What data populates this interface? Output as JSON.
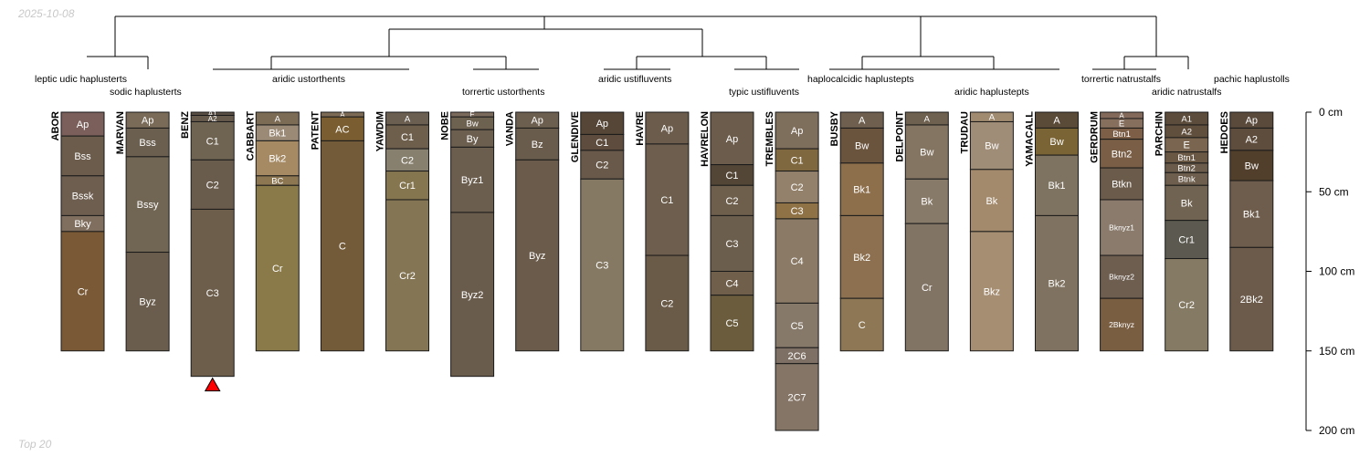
{
  "corner": {
    "date": "2025-10-08",
    "footer": "Top 20"
  },
  "depth_axis": {
    "unit": "cm",
    "ticks": [
      0,
      50,
      100,
      150,
      200
    ]
  },
  "groups": [
    "leptic udic haplusterts",
    "sodic haplusterts",
    "aridic ustorthents",
    "torrertic ustorthents",
    "aridic ustifluvents",
    "typic ustifluvents",
    "haplocalcidic haplustepts",
    "aridic haplustepts",
    "torrertic natrustalfs",
    "aridic natrustalfs",
    "pachic haplustolls"
  ],
  "truncation_marker": {
    "profile": "BENZ"
  },
  "profiles": [
    {
      "name": "ABOR",
      "group": "leptic udic haplusterts",
      "horizons": [
        {
          "name": "Ap",
          "top": 0,
          "bottom": 15,
          "color": "#7a5f5a"
        },
        {
          "name": "Bss",
          "top": 15,
          "bottom": 40,
          "color": "#6b5c4c"
        },
        {
          "name": "Bssk",
          "top": 40,
          "bottom": 65,
          "color": "#6e5e50"
        },
        {
          "name": "Bky",
          "top": 65,
          "bottom": 75,
          "color": "#806e5e"
        },
        {
          "name": "Cr",
          "top": 75,
          "bottom": 150,
          "color": "#7a5a36"
        }
      ]
    },
    {
      "name": "MARVAN",
      "group": "sodic haplusterts",
      "horizons": [
        {
          "name": "Ap",
          "top": 0,
          "bottom": 10,
          "color": "#7a6a58"
        },
        {
          "name": "Bss",
          "top": 10,
          "bottom": 28,
          "color": "#6b5f50"
        },
        {
          "name": "Bssy",
          "top": 28,
          "bottom": 88,
          "color": "#716553"
        },
        {
          "name": "Byz",
          "top": 88,
          "bottom": 150,
          "color": "#6a5d4d"
        }
      ]
    },
    {
      "name": "BENZ",
      "group": "aridic ustorthents",
      "horizons": [
        {
          "name": "A1",
          "top": 0,
          "bottom": 2,
          "color": "#5a4f44"
        },
        {
          "name": "A2",
          "top": 2,
          "bottom": 6,
          "color": "#665a4c"
        },
        {
          "name": "C1",
          "top": 6,
          "bottom": 30,
          "color": "#6f6352"
        },
        {
          "name": "C2",
          "top": 30,
          "bottom": 61,
          "color": "#6a5c4d"
        },
        {
          "name": "C3",
          "top": 61,
          "bottom": 166,
          "color": "#6c5e4a"
        }
      ]
    },
    {
      "name": "CABBART",
      "group": "aridic ustorthents",
      "horizons": [
        {
          "name": "A",
          "top": 0,
          "bottom": 8,
          "color": "#7c6b55"
        },
        {
          "name": "Bk1",
          "top": 8,
          "bottom": 18,
          "color": "#9a8a76"
        },
        {
          "name": "Bk2",
          "top": 18,
          "bottom": 40,
          "color": "#a58a64"
        },
        {
          "name": "BC",
          "top": 40,
          "bottom": 46,
          "color": "#8d7652"
        },
        {
          "name": "Cr",
          "top": 46,
          "bottom": 150,
          "color": "#8a7a4a"
        }
      ]
    },
    {
      "name": "PATENT",
      "group": "aridic ustorthents",
      "horizons": [
        {
          "name": "A",
          "top": 0,
          "bottom": 3,
          "color": "#7c6a55"
        },
        {
          "name": "AC",
          "top": 3,
          "bottom": 18,
          "color": "#7a5e32"
        },
        {
          "name": "C",
          "top": 18,
          "bottom": 150,
          "color": "#735b3a"
        }
      ]
    },
    {
      "name": "YAWDIM",
      "group": "aridic ustorthents",
      "horizons": [
        {
          "name": "A",
          "top": 0,
          "bottom": 8,
          "color": "#6b5f52"
        },
        {
          "name": "C1",
          "top": 8,
          "bottom": 23,
          "color": "#6e5e4c"
        },
        {
          "name": "C2",
          "top": 23,
          "bottom": 37,
          "color": "#88806e"
        },
        {
          "name": "Cr1",
          "top": 37,
          "bottom": 55,
          "color": "#857650"
        },
        {
          "name": "Cr2",
          "top": 55,
          "bottom": 150,
          "color": "#847554"
        }
      ]
    },
    {
      "name": "NOBE",
      "group": "torrertic ustorthents",
      "horizons": [
        {
          "name": "E",
          "top": 0,
          "bottom": 3,
          "color": "#7a6a5c"
        },
        {
          "name": "Bw",
          "top": 3,
          "bottom": 11,
          "color": "#6d6150"
        },
        {
          "name": "By",
          "top": 11,
          "bottom": 22,
          "color": "#6c5f50"
        },
        {
          "name": "Byz1",
          "top": 22,
          "bottom": 63,
          "color": "#6b5e4e"
        },
        {
          "name": "Byz2",
          "top": 63,
          "bottom": 166,
          "color": "#6a5c4c"
        }
      ]
    },
    {
      "name": "VANDA",
      "group": "torrertic ustorthents",
      "horizons": [
        {
          "name": "Ap",
          "top": 0,
          "bottom": 10,
          "color": "#6d5f4f"
        },
        {
          "name": "Bz",
          "top": 10,
          "bottom": 30,
          "color": "#6a5c4c"
        },
        {
          "name": "Byz",
          "top": 30,
          "bottom": 150,
          "color": "#6a5b4a"
        }
      ]
    },
    {
      "name": "GLENDIVE",
      "group": "aridic ustifluvents",
      "horizons": [
        {
          "name": "Ap",
          "top": 0,
          "bottom": 14,
          "color": "#554638"
        },
        {
          "name": "C1",
          "top": 14,
          "bottom": 24,
          "color": "#5e4d3e"
        },
        {
          "name": "C2",
          "top": 24,
          "bottom": 42,
          "color": "#68594a"
        },
        {
          "name": "C3",
          "top": 42,
          "bottom": 150,
          "color": "#857964"
        }
      ]
    },
    {
      "name": "HAVRE",
      "group": "aridic ustifluvents",
      "horizons": [
        {
          "name": "Ap",
          "top": 0,
          "bottom": 20,
          "color": "#6b5c4c"
        },
        {
          "name": "C1",
          "top": 20,
          "bottom": 90,
          "color": "#6d5e4d"
        },
        {
          "name": "C2",
          "top": 90,
          "bottom": 150,
          "color": "#6a5a48"
        }
      ]
    },
    {
      "name": "HAVRELON",
      "group": "typic ustifluvents",
      "horizons": [
        {
          "name": "Ap",
          "top": 0,
          "bottom": 33,
          "color": "#6c5c4b"
        },
        {
          "name": "C1",
          "top": 33,
          "bottom": 46,
          "color": "#544637"
        },
        {
          "name": "C2",
          "top": 46,
          "bottom": 65,
          "color": "#6e5f4d"
        },
        {
          "name": "C3",
          "top": 65,
          "bottom": 100,
          "color": "#6c5e4c"
        },
        {
          "name": "C4",
          "top": 100,
          "bottom": 115,
          "color": "#705f4a"
        },
        {
          "name": "C5",
          "top": 115,
          "bottom": 150,
          "color": "#6a5c3c"
        }
      ]
    },
    {
      "name": "TREMBLES",
      "group": "typic ustifluvents",
      "horizons": [
        {
          "name": "Ap",
          "top": 0,
          "bottom": 23,
          "color": "#7e6e5c"
        },
        {
          "name": "C1",
          "top": 23,
          "bottom": 37,
          "color": "#7f683f"
        },
        {
          "name": "C2",
          "top": 37,
          "bottom": 57,
          "color": "#93816b"
        },
        {
          "name": "C3",
          "top": 57,
          "bottom": 67,
          "color": "#8f7246"
        },
        {
          "name": "C4",
          "top": 67,
          "bottom": 120,
          "color": "#8a7a66"
        },
        {
          "name": "C5",
          "top": 120,
          "bottom": 148,
          "color": "#86796a"
        },
        {
          "name": "2C6",
          "top": 148,
          "bottom": 158,
          "color": "#7e7064"
        },
        {
          "name": "2C7",
          "top": 158,
          "bottom": 200,
          "color": "#847566"
        }
      ]
    },
    {
      "name": "BUSBY",
      "group": "haplocalcidic haplustepts",
      "horizons": [
        {
          "name": "A",
          "top": 0,
          "bottom": 10,
          "color": "#6e5f4f"
        },
        {
          "name": "Bw",
          "top": 10,
          "bottom": 32,
          "color": "#6b543e"
        },
        {
          "name": "Bk1",
          "top": 32,
          "bottom": 65,
          "color": "#8d6f4c"
        },
        {
          "name": "Bk2",
          "top": 65,
          "bottom": 117,
          "color": "#8c7050"
        },
        {
          "name": "C",
          "top": 117,
          "bottom": 150,
          "color": "#8e7754"
        }
      ]
    },
    {
      "name": "DELPOINT",
      "group": "aridic haplustepts",
      "horizons": [
        {
          "name": "A",
          "top": 0,
          "bottom": 8,
          "color": "#6e6150"
        },
        {
          "name": "Bw",
          "top": 8,
          "bottom": 42,
          "color": "#847562"
        },
        {
          "name": "Bk",
          "top": 42,
          "bottom": 70,
          "color": "#877a69"
        },
        {
          "name": "Cr",
          "top": 70,
          "bottom": 150,
          "color": "#827464"
        }
      ]
    },
    {
      "name": "TRUDAU",
      "group": "aridic haplustepts",
      "horizons": [
        {
          "name": "A",
          "top": 0,
          "bottom": 6,
          "color": "#a08b70"
        },
        {
          "name": "Bw",
          "top": 6,
          "bottom": 36,
          "color": "#a08d78"
        },
        {
          "name": "Bk",
          "top": 36,
          "bottom": 75,
          "color": "#a48a6c"
        },
        {
          "name": "Bkz",
          "top": 75,
          "bottom": 150,
          "color": "#a58e72"
        }
      ]
    },
    {
      "name": "YAMACALL",
      "group": "aridic haplustepts",
      "horizons": [
        {
          "name": "A",
          "top": 0,
          "bottom": 10,
          "color": "#5a4a38"
        },
        {
          "name": "Bw",
          "top": 10,
          "bottom": 27,
          "color": "#7a6436"
        },
        {
          "name": "Bk1",
          "top": 27,
          "bottom": 65,
          "color": "#7e7260"
        },
        {
          "name": "Bk2",
          "top": 65,
          "bottom": 150,
          "color": "#7f7260"
        }
      ]
    },
    {
      "name": "GERDRUM",
      "group": "torrertic natrustalfs",
      "horizons": [
        {
          "name": "A",
          "top": 0,
          "bottom": 4,
          "color": "#82695a"
        },
        {
          "name": "E",
          "top": 4,
          "bottom": 10,
          "color": "#876f5e"
        },
        {
          "name": "Btn1",
          "top": 10,
          "bottom": 17,
          "color": "#7d5f48"
        },
        {
          "name": "Btn2",
          "top": 17,
          "bottom": 35,
          "color": "#7a5f46"
        },
        {
          "name": "Btkn",
          "top": 35,
          "bottom": 55,
          "color": "#6a5b4a"
        },
        {
          "name": "Bknyz1",
          "top": 55,
          "bottom": 90,
          "color": "#8a7b6c"
        },
        {
          "name": "Bknyz2",
          "top": 90,
          "bottom": 117,
          "color": "#6d5e50"
        },
        {
          "name": "2Bknyz",
          "top": 117,
          "bottom": 150,
          "color": "#7a5e42"
        }
      ]
    },
    {
      "name": "PARCHIN",
      "group": "aridic natrustalfs",
      "horizons": [
        {
          "name": "A1",
          "top": 0,
          "bottom": 8,
          "color": "#5c4c3c"
        },
        {
          "name": "A2",
          "top": 8,
          "bottom": 16,
          "color": "#614f3e"
        },
        {
          "name": "E",
          "top": 16,
          "bottom": 25,
          "color": "#7a6650"
        },
        {
          "name": "Btn1",
          "top": 25,
          "bottom": 32,
          "color": "#6a5845"
        },
        {
          "name": "Btn2",
          "top": 32,
          "bottom": 38,
          "color": "#6a5b4a"
        },
        {
          "name": "Btnk",
          "top": 38,
          "bottom": 46,
          "color": "#6d5e4d"
        },
        {
          "name": "Bk",
          "top": 46,
          "bottom": 68,
          "color": "#706352"
        },
        {
          "name": "Cr1",
          "top": 68,
          "bottom": 92,
          "color": "#5c5a50"
        },
        {
          "name": "Cr2",
          "top": 92,
          "bottom": 150,
          "color": "#857a63"
        }
      ]
    },
    {
      "name": "HEDOES",
      "group": "pachic haplustolls",
      "horizons": [
        {
          "name": "Ap",
          "top": 0,
          "bottom": 10,
          "color": "#5a4a3c"
        },
        {
          "name": "A2",
          "top": 10,
          "bottom": 24,
          "color": "#5e4c3c"
        },
        {
          "name": "Bw",
          "top": 24,
          "bottom": 43,
          "color": "#513f2c"
        },
        {
          "name": "Bk1",
          "top": 43,
          "bottom": 85,
          "color": "#6e5d4c"
        },
        {
          "name": "2Bk2",
          "top": 85,
          "bottom": 150,
          "color": "#6c5b4b"
        }
      ]
    }
  ]
}
